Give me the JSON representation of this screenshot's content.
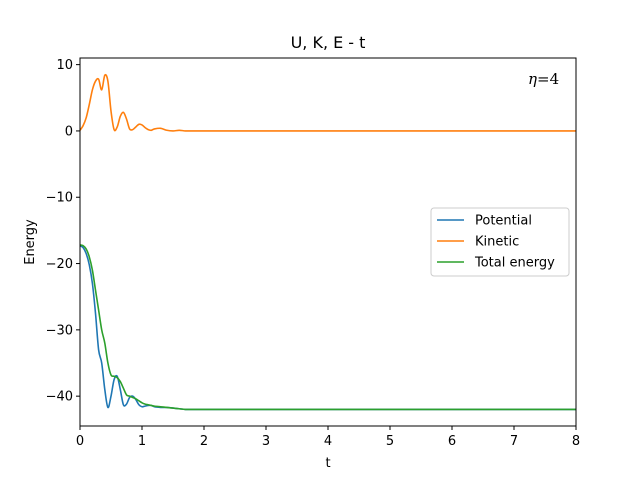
{
  "chart_data": {
    "type": "line",
    "title": "U, K, E - t",
    "xlabel": "t",
    "ylabel": "Energy",
    "xlim": [
      0,
      8
    ],
    "ylim": [
      -44.5,
      11
    ],
    "xticks": [
      0,
      1,
      2,
      3,
      4,
      5,
      6,
      7,
      8
    ],
    "yticks": [
      10,
      0,
      -10,
      -20,
      -30,
      -40
    ],
    "ytick_labels": [
      "10",
      "0",
      "−10",
      "−20",
      "−30",
      "−40"
    ],
    "grid": false,
    "legend_position": "center-right",
    "annotation": {
      "symbol": "η",
      "text": "=4",
      "position": "top-right"
    },
    "series": [
      {
        "name": "Potential",
        "color": "#1f77b4",
        "x": [
          0,
          0.05,
          0.1,
          0.15,
          0.2,
          0.25,
          0.3,
          0.35,
          0.4,
          0.45,
          0.5,
          0.55,
          0.6,
          0.65,
          0.7,
          0.75,
          0.8,
          0.85,
          0.9,
          0.95,
          1.0,
          1.05,
          1.1,
          1.15,
          1.2,
          1.3,
          1.4,
          1.5,
          1.6,
          1.7,
          1.8,
          2.0,
          2.5,
          3,
          4,
          5,
          6,
          7,
          8
        ],
        "values": [
          -17.3,
          -17.6,
          -18.5,
          -20.2,
          -23.0,
          -27.5,
          -33.0,
          -35.0,
          -39.0,
          -41.7,
          -40.0,
          -37.5,
          -37.0,
          -39.0,
          -41.3,
          -41.2,
          -40.2,
          -40.0,
          -40.5,
          -41.3,
          -41.6,
          -41.5,
          -41.4,
          -41.4,
          -41.6,
          -41.7,
          -41.7,
          -41.8,
          -41.9,
          -42.0,
          -42.0,
          -42.0,
          -42.0,
          -42.0,
          -42.0,
          -42.0,
          -42.0,
          -42.0,
          -42.0
        ]
      },
      {
        "name": "Kinetic",
        "color": "#ff7f0e",
        "x": [
          0,
          0.05,
          0.1,
          0.15,
          0.2,
          0.25,
          0.3,
          0.35,
          0.4,
          0.45,
          0.5,
          0.55,
          0.6,
          0.65,
          0.7,
          0.75,
          0.8,
          0.85,
          0.9,
          0.95,
          1.0,
          1.05,
          1.1,
          1.15,
          1.2,
          1.3,
          1.4,
          1.5,
          1.6,
          1.7,
          1.8,
          2.0,
          2.5,
          3,
          4,
          5,
          6,
          7,
          8
        ],
        "values": [
          0.1,
          0.8,
          2.0,
          4.0,
          6.2,
          7.5,
          7.8,
          6.2,
          8.4,
          7.5,
          3.0,
          0.2,
          0.6,
          2.2,
          2.8,
          1.8,
          0.3,
          0.2,
          0.6,
          1.0,
          0.9,
          0.5,
          0.2,
          0.1,
          0.3,
          0.4,
          0.1,
          0.0,
          0.1,
          0.0,
          0.0,
          0.0,
          0.0,
          0.0,
          0.0,
          0.0,
          0.0,
          0.0,
          0.0
        ]
      },
      {
        "name": "Total energy",
        "color": "#2ca02c",
        "x": [
          0,
          0.05,
          0.1,
          0.15,
          0.2,
          0.25,
          0.3,
          0.35,
          0.4,
          0.45,
          0.5,
          0.55,
          0.6,
          0.65,
          0.7,
          0.75,
          0.8,
          0.85,
          0.9,
          0.95,
          1.0,
          1.05,
          1.1,
          1.15,
          1.2,
          1.3,
          1.4,
          1.5,
          1.6,
          1.7,
          1.8,
          2.0,
          2.5,
          3,
          4,
          5,
          6,
          7,
          8
        ],
        "values": [
          -17.2,
          -17.3,
          -17.8,
          -19.0,
          -21.0,
          -24.0,
          -27.0,
          -30.0,
          -32.0,
          -35.0,
          -36.8,
          -37.0,
          -37.2,
          -37.8,
          -38.8,
          -39.8,
          -40.0,
          -40.2,
          -40.4,
          -40.7,
          -41.0,
          -41.2,
          -41.3,
          -41.4,
          -41.5,
          -41.6,
          -41.7,
          -41.8,
          -41.9,
          -42.0,
          -42.0,
          -42.0,
          -42.0,
          -42.0,
          -42.0,
          -42.0,
          -42.0,
          -42.0,
          -42.0
        ]
      }
    ]
  }
}
